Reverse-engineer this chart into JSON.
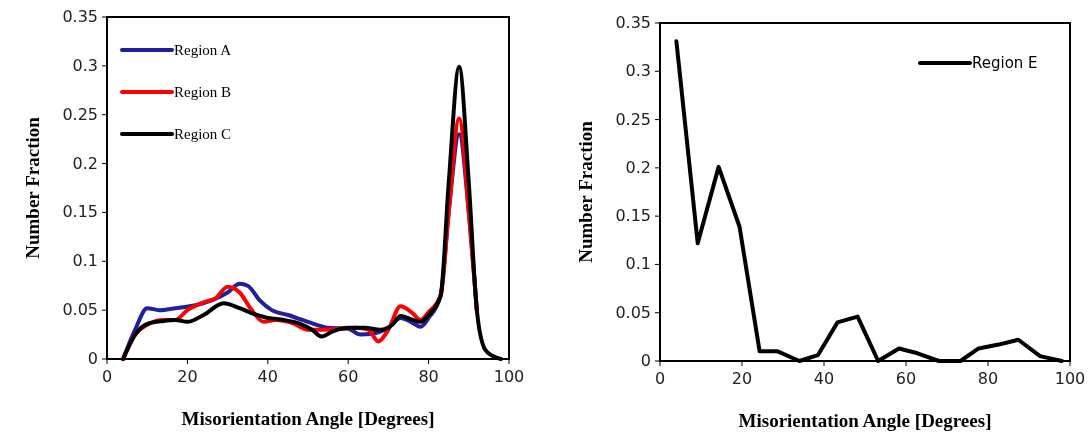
{
  "chart_data": [
    {
      "type": "line",
      "xlabel": "Misorientation Angle [Degrees]",
      "ylabel": "Number Fraction",
      "xlim": [
        0,
        100
      ],
      "xticks": [
        0,
        20,
        40,
        60,
        80,
        100
      ],
      "ylim": [
        0,
        0.35
      ],
      "yticks": [
        0,
        0.05,
        0.1,
        0.15,
        0.2,
        0.25,
        0.3,
        0.35
      ],
      "legend": "top left",
      "grid": false,
      "series": [
        {
          "name": "Region A",
          "color": "#1f1fa0",
          "x": [
            4,
            7,
            10,
            13,
            17,
            22,
            26,
            30,
            33,
            35,
            38,
            41,
            45,
            50,
            55,
            60,
            63,
            66,
            70,
            73,
            76,
            78,
            80,
            83,
            85,
            87.6,
            90,
            92
          ],
          "values": [
            0,
            0.03,
            0.052,
            0.05,
            0.052,
            0.055,
            0.06,
            0.068,
            0.077,
            0.075,
            0.06,
            0.05,
            0.045,
            0.038,
            0.032,
            0.031,
            0.025,
            0.026,
            0.032,
            0.042,
            0.037,
            0.033,
            0.042,
            0.065,
            0.15,
            0.23,
            0.15,
            0.05
          ]
        },
        {
          "name": "Region B",
          "color": "#ff0000",
          "x": [
            4,
            7,
            10,
            14,
            17,
            20,
            24,
            27,
            30,
            33,
            36,
            39,
            42,
            46,
            50,
            54,
            58,
            62,
            65,
            67.5,
            70,
            73,
            76,
            78,
            80,
            83,
            85,
            87.6,
            90,
            92
          ],
          "values": [
            0,
            0.025,
            0.035,
            0.04,
            0.04,
            0.05,
            0.058,
            0.062,
            0.074,
            0.068,
            0.05,
            0.038,
            0.04,
            0.037,
            0.03,
            0.03,
            0.031,
            0.032,
            0.03,
            0.018,
            0.03,
            0.054,
            0.047,
            0.04,
            0.048,
            0.065,
            0.15,
            0.246,
            0.15,
            0.05
          ]
        },
        {
          "name": "Region C",
          "color": "#000000",
          "x": [
            4,
            7,
            10,
            14,
            17,
            20,
            24,
            29,
            33,
            36,
            40,
            44,
            48,
            51,
            53.4,
            56,
            60,
            64,
            68,
            71,
            73,
            76,
            78,
            80,
            83,
            85,
            87.6,
            90,
            92,
            94,
            96,
            98
          ],
          "values": [
            0,
            0.025,
            0.036,
            0.039,
            0.04,
            0.038,
            0.045,
            0.057,
            0.052,
            0.047,
            0.042,
            0.04,
            0.036,
            0.03,
            0.023,
            0.028,
            0.032,
            0.032,
            0.03,
            0.035,
            0.044,
            0.04,
            0.038,
            0.045,
            0.065,
            0.18,
            0.299,
            0.18,
            0.05,
            0.01,
            0.003,
            0
          ]
        }
      ]
    },
    {
      "type": "line",
      "xlabel": "Misorientation Angle [Degrees]",
      "ylabel": "Number Fraction",
      "xlim": [
        0,
        100
      ],
      "xticks": [
        0,
        20,
        40,
        60,
        80,
        100
      ],
      "ylim": [
        0,
        0.35
      ],
      "yticks": [
        0,
        0.05,
        0.1,
        0.15,
        0.2,
        0.25,
        0.3,
        0.35
      ],
      "legend": "top right",
      "grid": false,
      "series": [
        {
          "name": "Region E",
          "color": "#000000",
          "x": [
            4,
            9.2,
            14.3,
            19.4,
            24.3,
            28.7,
            34,
            38.5,
            43.3,
            48.2,
            53.2,
            58.3,
            62.8,
            68,
            73.3,
            77.7,
            82.6,
            87.4,
            92.7,
            98
          ],
          "values": [
            0.331,
            0.122,
            0.201,
            0.139,
            0.01,
            0.01,
            0,
            0.006,
            0.04,
            0.046,
            0,
            0.013,
            0.008,
            0,
            0,
            0.013,
            0.017,
            0.022,
            0.005,
            0
          ]
        }
      ]
    }
  ]
}
